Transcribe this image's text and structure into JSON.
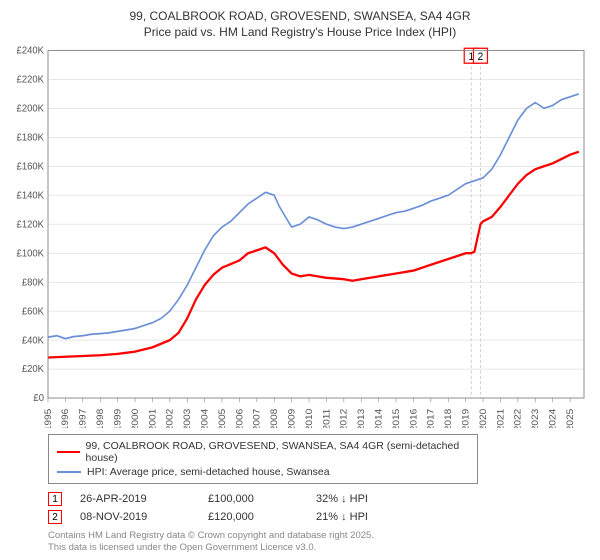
{
  "title_line1": "99, COALBROOK ROAD, GROVESEND, SWANSEA, SA4 4GR",
  "title_line2": "Price paid vs. HM Land Registry's House Price Index (HPI)",
  "chart": {
    "type": "line",
    "background_color": "#ffffff",
    "grid_color": "#d9d9d9",
    "axis_color": "#888888",
    "xlim": [
      1995,
      2025.8
    ],
    "x_ticks": [
      1995,
      1996,
      1997,
      1998,
      1999,
      2000,
      2001,
      2002,
      2003,
      2004,
      2005,
      2006,
      2007,
      2008,
      2009,
      2010,
      2011,
      2012,
      2013,
      2014,
      2015,
      2016,
      2017,
      2018,
      2019,
      2020,
      2021,
      2022,
      2023,
      2024,
      2025
    ],
    "ylim": [
      0,
      240000
    ],
    "y_ticks": [
      0,
      20000,
      40000,
      60000,
      80000,
      100000,
      120000,
      140000,
      160000,
      180000,
      200000,
      220000,
      240000
    ],
    "y_tick_labels": [
      "£0",
      "£20K",
      "£40K",
      "£60K",
      "£80K",
      "£100K",
      "£120K",
      "£140K",
      "£160K",
      "£180K",
      "£200K",
      "£220K",
      "£240K"
    ],
    "series": [
      {
        "name": "price_paid",
        "color": "#ff0000",
        "line_width": 2.2,
        "points": [
          [
            1995,
            28000
          ],
          [
            1996,
            28500
          ],
          [
            1997,
            29000
          ],
          [
            1998,
            29500
          ],
          [
            1999,
            30500
          ],
          [
            2000,
            32000
          ],
          [
            2001,
            35000
          ],
          [
            2002,
            40000
          ],
          [
            2002.5,
            45000
          ],
          [
            2003,
            55000
          ],
          [
            2003.5,
            68000
          ],
          [
            2004,
            78000
          ],
          [
            2004.5,
            85000
          ],
          [
            2005,
            90000
          ],
          [
            2006,
            95000
          ],
          [
            2006.5,
            100000
          ],
          [
            2007,
            102000
          ],
          [
            2007.5,
            104000
          ],
          [
            2008,
            100000
          ],
          [
            2008.5,
            92000
          ],
          [
            2009,
            86000
          ],
          [
            2009.5,
            84000
          ],
          [
            2010,
            85000
          ],
          [
            2010.5,
            84000
          ],
          [
            2011,
            83000
          ],
          [
            2012,
            82000
          ],
          [
            2012.5,
            81000
          ],
          [
            2013,
            82000
          ],
          [
            2014,
            84000
          ],
          [
            2015,
            86000
          ],
          [
            2016,
            88000
          ],
          [
            2017,
            92000
          ],
          [
            2017.5,
            94000
          ],
          [
            2018,
            96000
          ],
          [
            2018.5,
            98000
          ],
          [
            2019,
            100000
          ],
          [
            2019.32,
            100000
          ],
          [
            2019.5,
            101000
          ],
          [
            2019.85,
            120000
          ],
          [
            2020,
            122000
          ],
          [
            2020.5,
            125000
          ],
          [
            2021,
            132000
          ],
          [
            2021.5,
            140000
          ],
          [
            2022,
            148000
          ],
          [
            2022.5,
            154000
          ],
          [
            2023,
            158000
          ],
          [
            2023.5,
            160000
          ],
          [
            2024,
            162000
          ],
          [
            2024.5,
            165000
          ],
          [
            2025,
            168000
          ],
          [
            2025.5,
            170000
          ]
        ]
      },
      {
        "name": "hpi",
        "color": "#6a8fd8",
        "line_width": 1.6,
        "points": [
          [
            1995,
            42000
          ],
          [
            1995.5,
            43000
          ],
          [
            1996,
            41000
          ],
          [
            1996.5,
            42500
          ],
          [
            1997,
            43000
          ],
          [
            1997.5,
            44000
          ],
          [
            1998,
            44500
          ],
          [
            1998.5,
            45000
          ],
          [
            1999,
            46000
          ],
          [
            1999.5,
            47000
          ],
          [
            2000,
            48000
          ],
          [
            2000.5,
            50000
          ],
          [
            2001,
            52000
          ],
          [
            2001.5,
            55000
          ],
          [
            2002,
            60000
          ],
          [
            2002.5,
            68000
          ],
          [
            2003,
            78000
          ],
          [
            2003.5,
            90000
          ],
          [
            2004,
            102000
          ],
          [
            2004.5,
            112000
          ],
          [
            2005,
            118000
          ],
          [
            2005.5,
            122000
          ],
          [
            2006,
            128000
          ],
          [
            2006.5,
            134000
          ],
          [
            2007,
            138000
          ],
          [
            2007.5,
            142000
          ],
          [
            2008,
            140000
          ],
          [
            2008.3,
            132000
          ],
          [
            2008.7,
            124000
          ],
          [
            2009,
            118000
          ],
          [
            2009.5,
            120000
          ],
          [
            2010,
            125000
          ],
          [
            2010.5,
            123000
          ],
          [
            2011,
            120000
          ],
          [
            2011.5,
            118000
          ],
          [
            2012,
            117000
          ],
          [
            2012.5,
            118000
          ],
          [
            2013,
            120000
          ],
          [
            2013.5,
            122000
          ],
          [
            2014,
            124000
          ],
          [
            2014.5,
            126000
          ],
          [
            2015,
            128000
          ],
          [
            2015.5,
            129000
          ],
          [
            2016,
            131000
          ],
          [
            2016.5,
            133000
          ],
          [
            2017,
            136000
          ],
          [
            2017.5,
            138000
          ],
          [
            2018,
            140000
          ],
          [
            2018.5,
            144000
          ],
          [
            2019,
            148000
          ],
          [
            2019.5,
            150000
          ],
          [
            2020,
            152000
          ],
          [
            2020.5,
            158000
          ],
          [
            2021,
            168000
          ],
          [
            2021.5,
            180000
          ],
          [
            2022,
            192000
          ],
          [
            2022.5,
            200000
          ],
          [
            2023,
            204000
          ],
          [
            2023.5,
            200000
          ],
          [
            2024,
            202000
          ],
          [
            2024.5,
            206000
          ],
          [
            2025,
            208000
          ],
          [
            2025.5,
            210000
          ]
        ]
      }
    ],
    "sale_markers": [
      {
        "n": "1",
        "x": 2019.32,
        "y_label": 246000
      },
      {
        "n": "2",
        "x": 2019.85,
        "y_label": 246000
      }
    ],
    "marker_line_color": "#d0d0d0",
    "marker_box_border": "#ff0000"
  },
  "legend": {
    "items": [
      {
        "color": "#ff0000",
        "width": 2.5,
        "label": "99, COALBROOK ROAD, GROVESEND, SWANSEA, SA4 4GR (semi-detached house)"
      },
      {
        "color": "#6a8fd8",
        "width": 2,
        "label": "HPI: Average price, semi-detached house, Swansea"
      }
    ]
  },
  "sales": [
    {
      "n": "1",
      "date": "26-APR-2019",
      "price": "£100,000",
      "delta": "32% ↓ HPI"
    },
    {
      "n": "2",
      "date": "08-NOV-2019",
      "price": "£120,000",
      "delta": "21% ↓ HPI"
    }
  ],
  "footer_line1": "Contains HM Land Registry data © Crown copyright and database right 2025.",
  "footer_line2": "This data is licensed under the Open Government Licence v3.0."
}
